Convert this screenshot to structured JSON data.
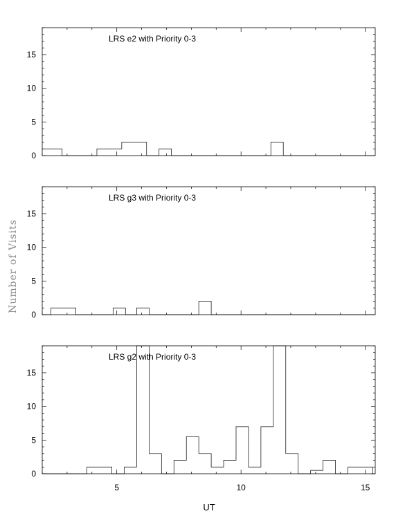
{
  "figure": {
    "ylabel": "Number of Visits",
    "xlabel": "UT"
  },
  "chart_data": [
    {
      "type": "histogram-step",
      "title": "LRS e2 with Priority 0-3",
      "xlim": [
        2,
        15.4
      ],
      "ylim": [
        0,
        19
      ],
      "yticks": [
        0,
        5,
        10,
        15
      ],
      "xticks": [],
      "bin_edges": [
        2.0,
        2.8,
        4.2,
        5.2,
        6.2,
        6.7,
        7.2,
        11.2,
        11.7,
        15.4
      ],
      "values": [
        1,
        0,
        1,
        2,
        0,
        1,
        0,
        2,
        0
      ]
    },
    {
      "type": "histogram-step",
      "title": "LRS g3 with Priority 0-3",
      "xlim": [
        2,
        15.4
      ],
      "ylim": [
        0,
        19
      ],
      "yticks": [
        0,
        5,
        10,
        15
      ],
      "xticks": [],
      "bin_edges": [
        2.0,
        2.35,
        3.35,
        4.85,
        5.35,
        5.8,
        6.3,
        8.3,
        8.8,
        15.4
      ],
      "values": [
        0,
        1,
        0,
        1,
        0,
        1,
        0,
        2,
        0
      ]
    },
    {
      "type": "histogram-step",
      "title": "LRS g2 with Priority 0-3",
      "xlim": [
        2,
        15.4
      ],
      "ylim": [
        0,
        19
      ],
      "yticks": [
        0,
        5,
        10,
        15
      ],
      "xticks": [
        5,
        10,
        15
      ],
      "bin_edges": [
        2.0,
        3.8,
        4.8,
        5.3,
        5.8,
        6.3,
        6.8,
        7.3,
        7.8,
        8.3,
        8.8,
        9.3,
        9.8,
        10.3,
        10.8,
        11.3,
        11.8,
        12.3,
        12.8,
        13.3,
        13.8,
        14.3,
        15.3,
        15.4
      ],
      "values": [
        0,
        1,
        0,
        1,
        19,
        3,
        0,
        2,
        5.5,
        3,
        1,
        2,
        7,
        1,
        7,
        19,
        3,
        0,
        0.5,
        2,
        0,
        1,
        0
      ]
    }
  ]
}
